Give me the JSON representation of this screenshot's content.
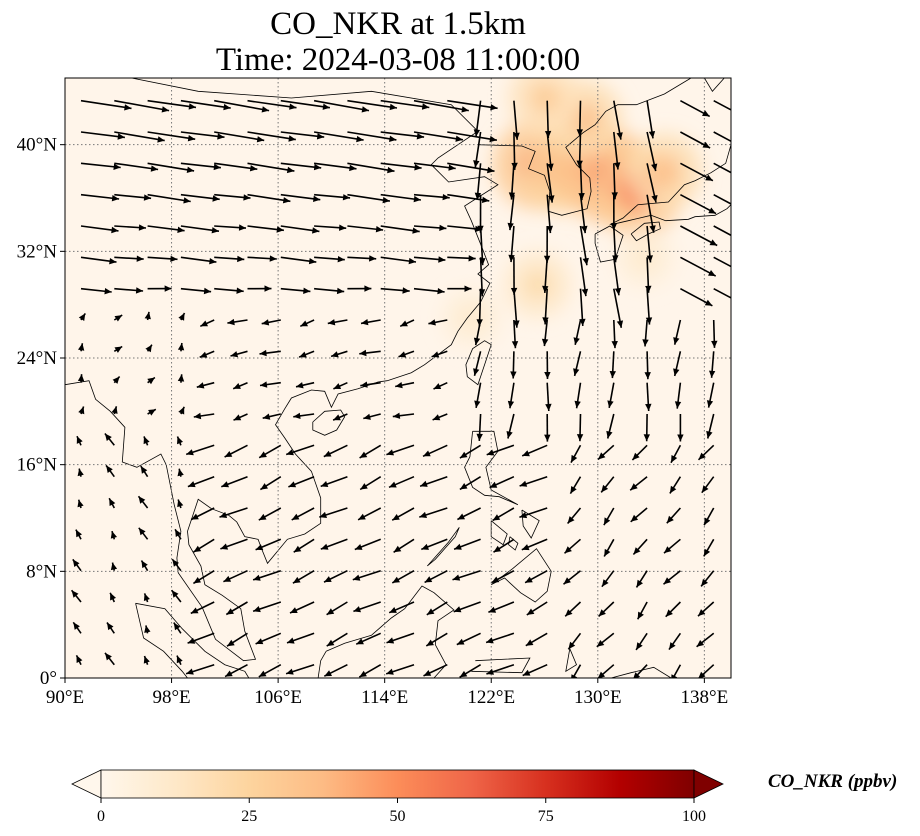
{
  "title": {
    "line1": "CO_NKR at 1.5km",
    "line2": "Time: 2024-03-08 11:00:00"
  },
  "map": {
    "lon_range": [
      90,
      140
    ],
    "lat_range": [
      0,
      45
    ],
    "lon_ticks": [
      "90°E",
      "98°E",
      "106°E",
      "114°E",
      "122°E",
      "130°E",
      "138°E"
    ],
    "lon_tick_values": [
      90,
      98,
      106,
      114,
      122,
      130,
      138
    ],
    "lat_ticks": [
      "0°",
      "8°N",
      "16°N",
      "24°N",
      "32°N",
      "40°N"
    ],
    "lat_tick_values": [
      0,
      8,
      16,
      24,
      32,
      40
    ],
    "gridlines": true,
    "gridline_style": "dotted",
    "background_color": "#fff5ea",
    "coastline_color": "#000000",
    "wind_vectors": true,
    "arrow_color": "#000000"
  },
  "colorbar": {
    "label": "CO_NKR (ppbv)",
    "min": 0,
    "max": 100,
    "ticks": [
      "0",
      "25",
      "50",
      "75",
      "100"
    ],
    "tick_values": [
      0,
      25,
      50,
      75,
      100
    ],
    "extend": "both",
    "colormap": "OrRd",
    "colors": [
      "#fff7ec",
      "#fee8c8",
      "#fdd49e",
      "#fdbb84",
      "#fc8d59",
      "#ef6548",
      "#d7301f",
      "#b30000",
      "#7f0000"
    ]
  },
  "chart_data": {
    "type": "heatmap",
    "title": "CO_NKR at 1.5km",
    "subtitle": "Time: 2024-03-08 11:00:00",
    "xlim": [
      90,
      140
    ],
    "ylim": [
      0,
      45
    ],
    "colorbar_label": "CO_NKR (ppbv)",
    "colorbar_range": [
      0,
      100
    ],
    "hotspots": [
      {
        "lon": 125.5,
        "lat": 38.5,
        "value": 55
      },
      {
        "lon": 127.5,
        "lat": 38.0,
        "value": 45
      },
      {
        "lon": 129.5,
        "lat": 38.5,
        "value": 55
      },
      {
        "lon": 131.0,
        "lat": 37.5,
        "value": 60
      },
      {
        "lon": 133.0,
        "lat": 36.5,
        "value": 55
      },
      {
        "lon": 135.0,
        "lat": 38.0,
        "value": 35
      },
      {
        "lon": 129.0,
        "lat": 42.0,
        "value": 35
      },
      {
        "lon": 126.0,
        "lat": 43.5,
        "value": 30
      },
      {
        "lon": 125.5,
        "lat": 29.5,
        "value": 22
      },
      {
        "lon": 120.5,
        "lat": 27.0,
        "value": 12
      },
      {
        "lon": 133.5,
        "lat": 31.5,
        "value": 12
      }
    ]
  }
}
